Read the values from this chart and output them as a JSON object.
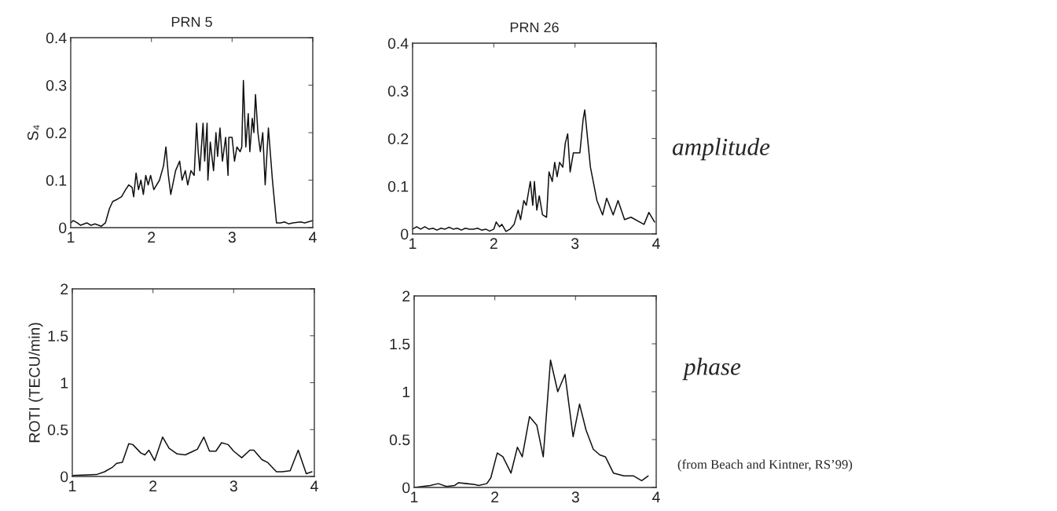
{
  "chart_data": [
    {
      "type": "line",
      "title": "PRN 5",
      "ylabel": "S₄",
      "xlim": [
        1,
        4
      ],
      "xticks": [
        1,
        2,
        3,
        4
      ],
      "ylim": [
        0,
        0.4
      ],
      "yticks": [
        0,
        0.1,
        0.2,
        0.3,
        0.4
      ],
      "grid": false,
      "series": [
        {
          "color": "#111111",
          "x": [
            1.0,
            1.03,
            1.08,
            1.12,
            1.2,
            1.25,
            1.3,
            1.38,
            1.43,
            1.48,
            1.52,
            1.58,
            1.63,
            1.68,
            1.72,
            1.76,
            1.78,
            1.81,
            1.84,
            1.87,
            1.9,
            1.93,
            1.96,
            1.99,
            2.03,
            2.1,
            2.15,
            2.18,
            2.21,
            2.24,
            2.3,
            2.35,
            2.38,
            2.42,
            2.45,
            2.49,
            2.53,
            2.56,
            2.58,
            2.6,
            2.64,
            2.66,
            2.69,
            2.7,
            2.73,
            2.77,
            2.8,
            2.82,
            2.85,
            2.88,
            2.92,
            2.95,
            2.96,
            3.0,
            3.03,
            3.06,
            3.1,
            3.12,
            3.14,
            3.17,
            3.2,
            3.22,
            3.25,
            3.27,
            3.29,
            3.32,
            3.35,
            3.38,
            3.41,
            3.45,
            3.5,
            3.55,
            3.6,
            3.65,
            3.7,
            3.75,
            3.85,
            3.9,
            4.0
          ],
          "values": [
            0.01,
            0.015,
            0.01,
            0.005,
            0.01,
            0.005,
            0.008,
            0.003,
            0.01,
            0.04,
            0.055,
            0.06,
            0.065,
            0.08,
            0.09,
            0.085,
            0.065,
            0.115,
            0.08,
            0.1,
            0.07,
            0.11,
            0.09,
            0.11,
            0.08,
            0.1,
            0.13,
            0.17,
            0.11,
            0.07,
            0.12,
            0.14,
            0.1,
            0.12,
            0.09,
            0.12,
            0.11,
            0.22,
            0.16,
            0.12,
            0.22,
            0.14,
            0.22,
            0.1,
            0.18,
            0.12,
            0.2,
            0.15,
            0.21,
            0.14,
            0.19,
            0.11,
            0.19,
            0.19,
            0.14,
            0.17,
            0.16,
            0.17,
            0.31,
            0.17,
            0.24,
            0.16,
            0.23,
            0.2,
            0.28,
            0.2,
            0.16,
            0.2,
            0.09,
            0.21,
            0.1,
            0.01,
            0.01,
            0.012,
            0.008,
            0.01,
            0.012,
            0.01,
            0.015
          ]
        }
      ]
    },
    {
      "type": "line",
      "title": "PRN 26",
      "xlim": [
        1,
        4
      ],
      "xticks": [
        1,
        2,
        3,
        4
      ],
      "ylim": [
        0,
        0.4
      ],
      "yticks": [
        0,
        0.1,
        0.2,
        0.3,
        0.4
      ],
      "grid": false,
      "series": [
        {
          "color": "#111111",
          "x": [
            1.0,
            1.05,
            1.1,
            1.15,
            1.2,
            1.25,
            1.3,
            1.35,
            1.4,
            1.45,
            1.5,
            1.55,
            1.6,
            1.65,
            1.7,
            1.75,
            1.8,
            1.85,
            1.9,
            1.95,
            2.0,
            2.03,
            2.07,
            2.1,
            2.15,
            2.2,
            2.25,
            2.3,
            2.33,
            2.37,
            2.4,
            2.45,
            2.48,
            2.5,
            2.53,
            2.56,
            2.6,
            2.65,
            2.68,
            2.72,
            2.75,
            2.78,
            2.81,
            2.85,
            2.88,
            2.91,
            2.94,
            2.98,
            3.06,
            3.1,
            3.12,
            3.19,
            3.27,
            3.34,
            3.39,
            3.47,
            3.53,
            3.61,
            3.69,
            3.85,
            3.91,
            3.98
          ],
          "values": [
            0.01,
            0.015,
            0.01,
            0.015,
            0.01,
            0.012,
            0.008,
            0.012,
            0.01,
            0.014,
            0.01,
            0.012,
            0.008,
            0.012,
            0.01,
            0.01,
            0.012,
            0.008,
            0.01,
            0.006,
            0.01,
            0.025,
            0.015,
            0.02,
            0.005,
            0.01,
            0.02,
            0.05,
            0.03,
            0.07,
            0.06,
            0.11,
            0.06,
            0.11,
            0.05,
            0.08,
            0.04,
            0.035,
            0.13,
            0.11,
            0.15,
            0.12,
            0.15,
            0.14,
            0.19,
            0.21,
            0.13,
            0.17,
            0.17,
            0.24,
            0.26,
            0.14,
            0.07,
            0.04,
            0.075,
            0.04,
            0.07,
            0.03,
            0.035,
            0.02,
            0.045,
            0.025
          ]
        }
      ]
    },
    {
      "type": "line",
      "ylabel": "ROTI (TECU/min)",
      "xlim": [
        1,
        4
      ],
      "xticks": [
        1,
        2,
        3,
        4
      ],
      "ylim": [
        0,
        2
      ],
      "yticks": [
        0,
        0.5,
        1,
        1.5,
        2
      ],
      "grid": false,
      "series": [
        {
          "color": "#111111",
          "x": [
            1.0,
            1.3,
            1.4,
            1.5,
            1.55,
            1.62,
            1.7,
            1.75,
            1.85,
            1.9,
            1.95,
            2.02,
            2.12,
            2.2,
            2.3,
            2.4,
            2.5,
            2.55,
            2.63,
            2.7,
            2.78,
            2.85,
            2.93,
            3.0,
            3.1,
            3.2,
            3.25,
            3.35,
            3.42,
            3.53,
            3.6,
            3.7,
            3.8,
            3.9,
            3.97
          ],
          "values": [
            0.01,
            0.02,
            0.05,
            0.1,
            0.14,
            0.15,
            0.35,
            0.34,
            0.25,
            0.23,
            0.28,
            0.17,
            0.42,
            0.3,
            0.24,
            0.23,
            0.27,
            0.29,
            0.42,
            0.27,
            0.27,
            0.36,
            0.34,
            0.27,
            0.2,
            0.28,
            0.28,
            0.18,
            0.15,
            0.05,
            0.05,
            0.06,
            0.28,
            0.03,
            0.05
          ]
        }
      ]
    },
    {
      "type": "line",
      "xlim": [
        1,
        4
      ],
      "xticks": [
        1,
        2,
        3,
        4
      ],
      "ylim": [
        0,
        2
      ],
      "yticks": [
        0,
        0.5,
        1,
        1.5,
        2
      ],
      "grid": false,
      "series": [
        {
          "color": "#111111",
          "x": [
            1.0,
            1.2,
            1.3,
            1.4,
            1.5,
            1.55,
            1.65,
            1.75,
            1.8,
            1.9,
            1.95,
            2.03,
            2.1,
            2.2,
            2.28,
            2.34,
            2.43,
            2.52,
            2.6,
            2.69,
            2.78,
            2.87,
            2.97,
            3.05,
            3.13,
            3.22,
            3.3,
            3.37,
            3.47,
            3.6,
            3.72,
            3.82,
            3.9
          ],
          "values": [
            0.0,
            0.02,
            0.04,
            0.01,
            0.02,
            0.05,
            0.04,
            0.03,
            0.02,
            0.04,
            0.1,
            0.36,
            0.32,
            0.15,
            0.42,
            0.32,
            0.74,
            0.65,
            0.32,
            1.33,
            1.0,
            1.18,
            0.53,
            0.87,
            0.6,
            0.4,
            0.34,
            0.32,
            0.15,
            0.12,
            0.12,
            0.07,
            0.12
          ]
        }
      ]
    },
    {
      "type": "other",
      "annotations": [
        "amplitude",
        "phase",
        "(from Beach and Kintner, RS’99)"
      ]
    }
  ]
}
